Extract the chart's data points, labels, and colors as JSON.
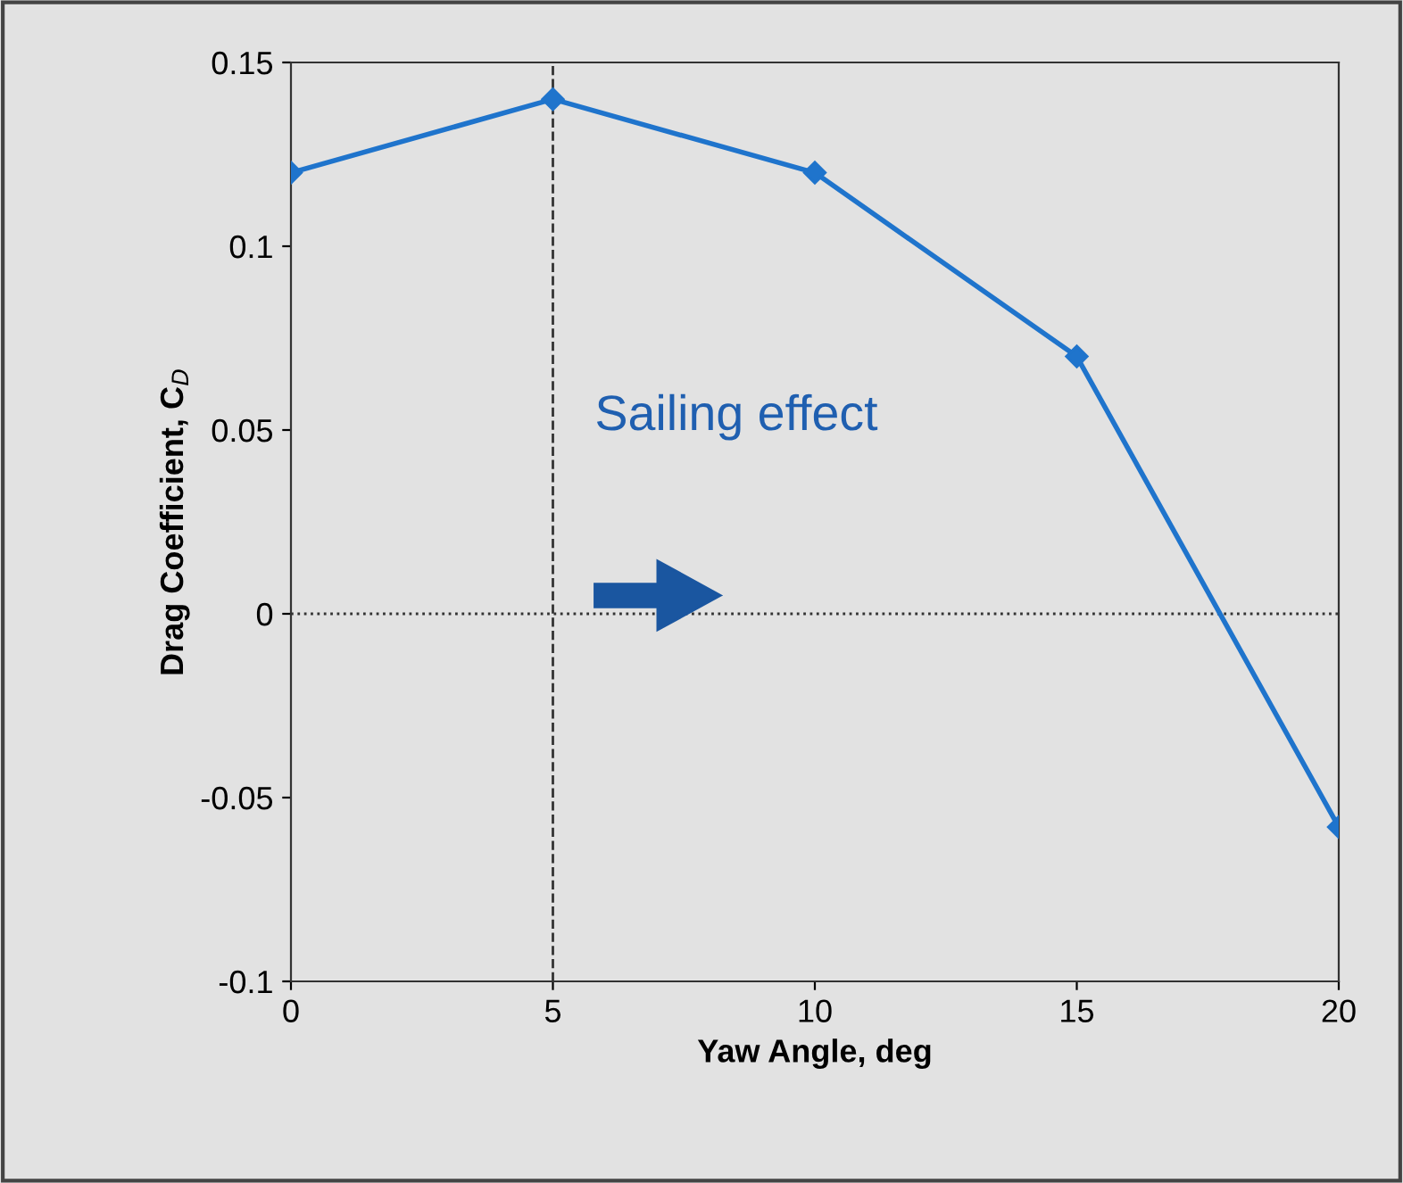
{
  "chart_data": {
    "type": "line",
    "xlabel": "Yaw Angle, deg",
    "ylabel": "Drag Coefficient, C$_{D}$",
    "x": [
      0,
      5,
      10,
      15,
      20
    ],
    "series": [
      {
        "color": "#1f74cc",
        "values": [
          0.12,
          0.14,
          0.12,
          0.07,
          -0.058
        ]
      }
    ],
    "xlim": [
      0,
      20
    ],
    "xticks": [
      0,
      5,
      10,
      15,
      20
    ],
    "ylim": [
      -0.1,
      0.15
    ],
    "yticks": [
      {
        "value": -0.1,
        "label": "-0.1"
      },
      {
        "value": -0.05,
        "label": "-0.05"
      },
      0,
      0.05,
      0.1,
      0.15
    ],
    "ref_lines": [
      {
        "axis": "y",
        "value": 0,
        "color": "#333333",
        "line_style": "dotted"
      },
      {
        "axis": "x",
        "value": 5,
        "color": "#333333",
        "line_style": "dashed"
      }
    ],
    "annotations": [
      "Sailing effect"
    ],
    "marker": "diamond",
    "line_style": "solid",
    "grid": false,
    "legend": false
  }
}
